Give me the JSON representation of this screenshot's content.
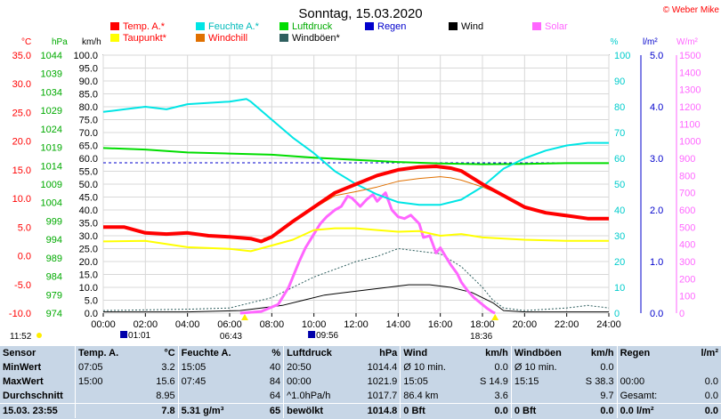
{
  "title": "Sonntag, 15.03.2020",
  "brand": "© Weber Mike",
  "chart_data": {
    "type": "line",
    "x_ticks": [
      "00:00",
      "02:00",
      "04:00",
      "06:00",
      "08:00",
      "10:00",
      "12:00",
      "14:00",
      "16:00",
      "18:00",
      "20:00",
      "22:00",
      "24:00"
    ],
    "xlim_hours": [
      0,
      24
    ],
    "axes": {
      "temp": {
        "label": "°C",
        "color": "#ff0000",
        "ticks": [
          "35.0",
          "30.0",
          "25.0",
          "20.0",
          "15.0",
          "10.0",
          "5.0",
          "0.0",
          "-5.0",
          "-10.0"
        ],
        "range": [
          -10,
          35
        ]
      },
      "pressure": {
        "label": "hPa",
        "color": "#00aa00",
        "ticks": [
          "1044",
          "1039",
          "1034",
          "1029",
          "1024",
          "1019",
          "1014",
          "1009",
          "1004",
          "999",
          "994",
          "989",
          "984",
          "979",
          "974"
        ],
        "range": [
          974,
          1044
        ]
      },
      "wind": {
        "label": "km/h",
        "color": "#000000",
        "ticks": [
          "100.0",
          "95.0",
          "90.0",
          "85.0",
          "80.0",
          "75.0",
          "70.0",
          "65.0",
          "60.0",
          "55.0",
          "50.0",
          "45.0",
          "40.0",
          "35.0",
          "30.0",
          "25.0",
          "20.0",
          "15.0",
          "10.0",
          "5.0",
          "0.0"
        ],
        "range": [
          0,
          100
        ]
      },
      "humidity": {
        "label": "%",
        "color": "#00cccc",
        "ticks": [
          "100",
          "90",
          "80",
          "70",
          "60",
          "50",
          "40",
          "30",
          "20",
          "10",
          "0"
        ],
        "range": [
          0,
          100
        ]
      },
      "rain": {
        "label": "l/m²",
        "color": "#0000cc",
        "ticks": [
          "5.0",
          "4.0",
          "3.0",
          "2.0",
          "1.0",
          "0.0"
        ],
        "range": [
          0,
          5
        ]
      },
      "solar": {
        "label": "W/m²",
        "color": "#ff66ff",
        "ticks": [
          "1500",
          "1400",
          "1300",
          "1200",
          "1100",
          "1000",
          "900",
          "800",
          "700",
          "600",
          "500",
          "400",
          "300",
          "200",
          "100",
          "0"
        ],
        "range": [
          0,
          1500
        ]
      }
    },
    "legend": [
      {
        "name": "Temp. A.*",
        "color": "#ff0000",
        "text_color": "#ff0000"
      },
      {
        "name": "Feuchte A.*",
        "color": "#00e5e5",
        "text_color": "#00bbbb"
      },
      {
        "name": "Luftdruck",
        "color": "#00dd00",
        "text_color": "#00aa00"
      },
      {
        "name": "Regen",
        "color": "#0000cc",
        "text_color": "#0000cc"
      },
      {
        "name": "Wind",
        "color": "#000000",
        "text_color": "#000000"
      },
      {
        "name": "Solar",
        "color": "#ff66ff",
        "text_color": "#ff66ff"
      },
      {
        "name": "Taupunkt*",
        "color": "#ffff00",
        "text_color": "#ff0000"
      },
      {
        "name": "Windchill",
        "color": "#e07000",
        "text_color": "#ff0000"
      },
      {
        "name": "Windböen*",
        "color": "#2f5f5f",
        "text_color": "#000000"
      }
    ],
    "series": {
      "temperature": [
        [
          0,
          5
        ],
        [
          1,
          5
        ],
        [
          2,
          4
        ],
        [
          3,
          3.8
        ],
        [
          4,
          4
        ],
        [
          5,
          3.5
        ],
        [
          6,
          3.3
        ],
        [
          7,
          3
        ],
        [
          7.5,
          2.5
        ],
        [
          8,
          3.3
        ],
        [
          9,
          6
        ],
        [
          10,
          8.5
        ],
        [
          11,
          11
        ],
        [
          12,
          12.5
        ],
        [
          13,
          14
        ],
        [
          14,
          15
        ],
        [
          15,
          15.5
        ],
        [
          15.8,
          15.6
        ],
        [
          16.5,
          15.3
        ],
        [
          17,
          14.8
        ],
        [
          18,
          12.5
        ],
        [
          19,
          10.5
        ],
        [
          20,
          8.5
        ],
        [
          21,
          7.5
        ],
        [
          22,
          7
        ],
        [
          23,
          6.5
        ],
        [
          24,
          6.5
        ]
      ],
      "dewpoint": [
        [
          0,
          2.5
        ],
        [
          2,
          2.6
        ],
        [
          4,
          1.5
        ],
        [
          6,
          1.2
        ],
        [
          7,
          0.8
        ],
        [
          8,
          1.8
        ],
        [
          9,
          2.8
        ],
        [
          10,
          4.5
        ],
        [
          11,
          4.8
        ],
        [
          12,
          4.8
        ],
        [
          13,
          4.5
        ],
        [
          14,
          4.2
        ],
        [
          15,
          4.3
        ],
        [
          16,
          3.5
        ],
        [
          17,
          3.8
        ],
        [
          18,
          3.2
        ],
        [
          20,
          2.8
        ],
        [
          22,
          2.6
        ],
        [
          24,
          2.6
        ]
      ],
      "humidity": [
        [
          0,
          78
        ],
        [
          1,
          79
        ],
        [
          2,
          80
        ],
        [
          3,
          79
        ],
        [
          4,
          81
        ],
        [
          6,
          82
        ],
        [
          6.8,
          83
        ],
        [
          7,
          82
        ],
        [
          8,
          75
        ],
        [
          9,
          68
        ],
        [
          10,
          62
        ],
        [
          11,
          55
        ],
        [
          12,
          50
        ],
        [
          13,
          46
        ],
        [
          14,
          43
        ],
        [
          15,
          42
        ],
        [
          16,
          42
        ],
        [
          17,
          44
        ],
        [
          18,
          49
        ],
        [
          19,
          56
        ],
        [
          20,
          60
        ],
        [
          21,
          63
        ],
        [
          22,
          65
        ],
        [
          23,
          66
        ],
        [
          24,
          66
        ]
      ],
      "pressure": [
        [
          0,
          1018.8
        ],
        [
          2,
          1018.4
        ],
        [
          4,
          1017.6
        ],
        [
          6,
          1017.3
        ],
        [
          8,
          1017.0
        ],
        [
          10,
          1016.2
        ],
        [
          12,
          1015.6
        ],
        [
          14,
          1015.0
        ],
        [
          16,
          1014.6
        ],
        [
          18,
          1014.4
        ],
        [
          20,
          1014.5
        ],
        [
          22,
          1014.7
        ],
        [
          24,
          1014.7
        ]
      ],
      "solar": [
        [
          6.5,
          0
        ],
        [
          7.5,
          10
        ],
        [
          8.3,
          50
        ],
        [
          8.8,
          150
        ],
        [
          9,
          210
        ],
        [
          9.3,
          300
        ],
        [
          9.6,
          380
        ],
        [
          10,
          460
        ],
        [
          10.3,
          520
        ],
        [
          10.6,
          560
        ],
        [
          11,
          600
        ],
        [
          11.3,
          620
        ],
        [
          11.6,
          680
        ],
        [
          11.8,
          670
        ],
        [
          12.2,
          620
        ],
        [
          12.5,
          660
        ],
        [
          12.8,
          690
        ],
        [
          13,
          650
        ],
        [
          13.4,
          700
        ],
        [
          13.7,
          600
        ],
        [
          14,
          560
        ],
        [
          14.3,
          550
        ],
        [
          14.6,
          570
        ],
        [
          15,
          520
        ],
        [
          15.2,
          440
        ],
        [
          15.5,
          450
        ],
        [
          15.8,
          350
        ],
        [
          16,
          380
        ],
        [
          16.2,
          340
        ],
        [
          16.5,
          280
        ],
        [
          16.8,
          230
        ],
        [
          17,
          180
        ],
        [
          17.3,
          130
        ],
        [
          17.6,
          90
        ],
        [
          17.9,
          60
        ],
        [
          18.2,
          30
        ],
        [
          18.5,
          5
        ],
        [
          18.6,
          0
        ]
      ],
      "wind_avg": [
        [
          0,
          0.5
        ],
        [
          4,
          0.5
        ],
        [
          6.5,
          1
        ],
        [
          7.5,
          2
        ],
        [
          8.5,
          3
        ],
        [
          9.5,
          5
        ],
        [
          10.5,
          7
        ],
        [
          11.5,
          8
        ],
        [
          12.5,
          9
        ],
        [
          13.5,
          10
        ],
        [
          14.5,
          11
        ],
        [
          15.5,
          11
        ],
        [
          16.5,
          10
        ],
        [
          17.5,
          8
        ],
        [
          18.5,
          4
        ],
        [
          19,
          1
        ],
        [
          20,
          0.5
        ],
        [
          24,
          0.5
        ]
      ],
      "wind_gust": [
        [
          0,
          1
        ],
        [
          4,
          1.5
        ],
        [
          6,
          2
        ],
        [
          7,
          4
        ],
        [
          8,
          6
        ],
        [
          9,
          10
        ],
        [
          10,
          14
        ],
        [
          11,
          17
        ],
        [
          12,
          20
        ],
        [
          13,
          22
        ],
        [
          14,
          25
        ],
        [
          15,
          24
        ],
        [
          16,
          23
        ],
        [
          17,
          18
        ],
        [
          18,
          10
        ],
        [
          18.5,
          5
        ],
        [
          19,
          2
        ],
        [
          20,
          1
        ],
        [
          22,
          2
        ],
        [
          23,
          3
        ],
        [
          24,
          2
        ]
      ],
      "windchill": [
        [
          7.6,
          3
        ],
        [
          8,
          3.5
        ],
        [
          9,
          6.2
        ],
        [
          10,
          8.3
        ],
        [
          11,
          10.5
        ],
        [
          12,
          11.2
        ],
        [
          13,
          12
        ],
        [
          14,
          13
        ],
        [
          15,
          13.5
        ],
        [
          16,
          13.8
        ],
        [
          16.5,
          13.6
        ],
        [
          17,
          13.2
        ],
        [
          18,
          12
        ],
        [
          19,
          10.5
        ],
        [
          20,
          8.5
        ],
        [
          21,
          7.5
        ],
        [
          22,
          7
        ],
        [
          23,
          6.5
        ],
        [
          24,
          6.5
        ]
      ]
    },
    "pressure_reference": 1014.8,
    "markers": {
      "moonrise": "01:01",
      "sunrise": "06:43",
      "moon": "09:56",
      "sunset": "18:36",
      "current": "11:52"
    }
  },
  "stats": {
    "headers": [
      "Sensor",
      "Temp. A.",
      "°C",
      "Feuchte A.",
      "%",
      "Luftdruck",
      "hPa",
      "Wind",
      "km/h",
      "Windböen",
      "km/h",
      "Regen",
      "l/m²"
    ],
    "rows": [
      [
        "MinWert",
        "07:05",
        "3.2",
        "15:05",
        "40",
        "20:50",
        "1014.4",
        "Ø 10 min.",
        "0.0",
        "Ø 10 min.",
        "0.0",
        "",
        ""
      ],
      [
        "MaxWert",
        "15:00",
        "15.6",
        "07:45",
        "84",
        "00:00",
        "1021.9",
        "15:05",
        "S 14.9",
        "15:15",
        "S 38.3",
        "00:00",
        "0.0"
      ],
      [
        "Durchschnitt",
        "",
        "8.95",
        "",
        "64",
        "^1.0hPa/h",
        "1017.7",
        "86.4 km",
        "3.6",
        "",
        "9.7",
        "Gesamt:",
        "0.0"
      ],
      [
        "15.03. 23:55",
        "",
        "7.8",
        "5.31 g/m³",
        "65",
        "bewölkt",
        "1014.8",
        "0 Bft",
        "0.0",
        "0 Bft",
        "0.0",
        "0.0 l/m²",
        "0.0"
      ]
    ]
  }
}
